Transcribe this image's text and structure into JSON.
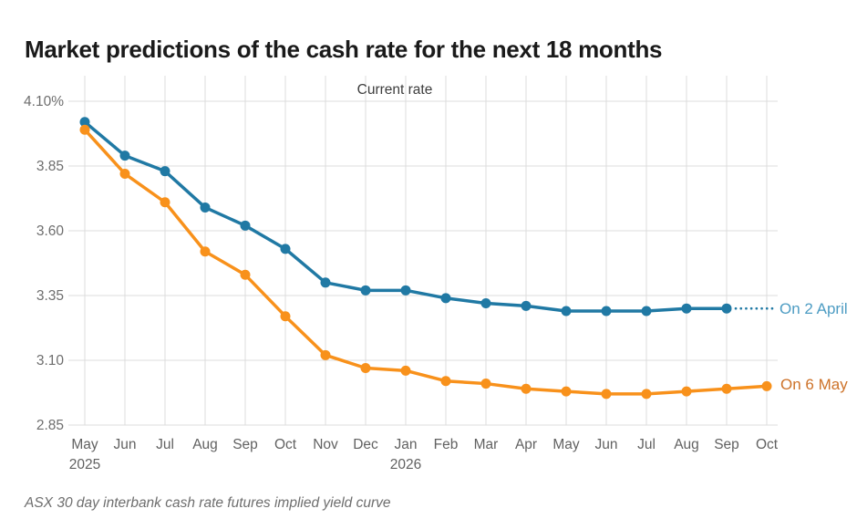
{
  "title": "Market predictions of the cash rate for the next 18 months",
  "caption": "ASX 30 day interbank cash rate futures implied yield curve",
  "colors": {
    "series_april": "#2079a4",
    "series_may": "#f8911b",
    "label_april": "#4d9cc3",
    "label_may": "#cd7229",
    "grid": "#dcdcdc",
    "axis_text": "#6e6e6e",
    "month_text": "#616161",
    "title_text": "#1a1a1a",
    "annotation_text": "#3d3d3d",
    "caption_text": "#6e6e6e"
  },
  "chart_data": {
    "type": "line",
    "title": "Market predictions of the cash rate for the next 18 months",
    "annotation": "Current rate",
    "xlabel": "",
    "ylabel": "",
    "ylim": [
      2.85,
      4.1
    ],
    "grid": true,
    "legend_position": "right-end-labels",
    "categories": [
      "May",
      "Jun",
      "Jul",
      "Aug",
      "Sep",
      "Oct",
      "Nov",
      "Dec",
      "Jan",
      "Feb",
      "Mar",
      "Apr",
      "May",
      "Jun",
      "Jul",
      "Aug",
      "Sep",
      "Oct"
    ],
    "year_labels": [
      {
        "index": 0,
        "label": "2025"
      },
      {
        "index": 8,
        "label": "2026"
      }
    ],
    "yticks": [
      {
        "value": 4.1,
        "label": "4.10%"
      },
      {
        "value": 3.85,
        "label": "3.85"
      },
      {
        "value": 3.6,
        "label": "3.60"
      },
      {
        "value": 3.35,
        "label": "3.35"
      },
      {
        "value": 3.1,
        "label": "3.10"
      },
      {
        "value": 2.85,
        "label": "2.85"
      }
    ],
    "series": [
      {
        "name": "On 2 April",
        "values": [
          4.02,
          3.89,
          3.83,
          3.69,
          3.62,
          3.53,
          3.4,
          3.37,
          3.37,
          3.34,
          3.32,
          3.31,
          3.29,
          3.29,
          3.29,
          3.3,
          3.3
        ]
      },
      {
        "name": "On 6 May",
        "values": [
          3.99,
          3.82,
          3.71,
          3.52,
          3.43,
          3.27,
          3.12,
          3.07,
          3.06,
          3.02,
          3.01,
          2.99,
          2.98,
          2.97,
          2.97,
          2.98,
          2.99,
          3.0
        ]
      }
    ]
  }
}
